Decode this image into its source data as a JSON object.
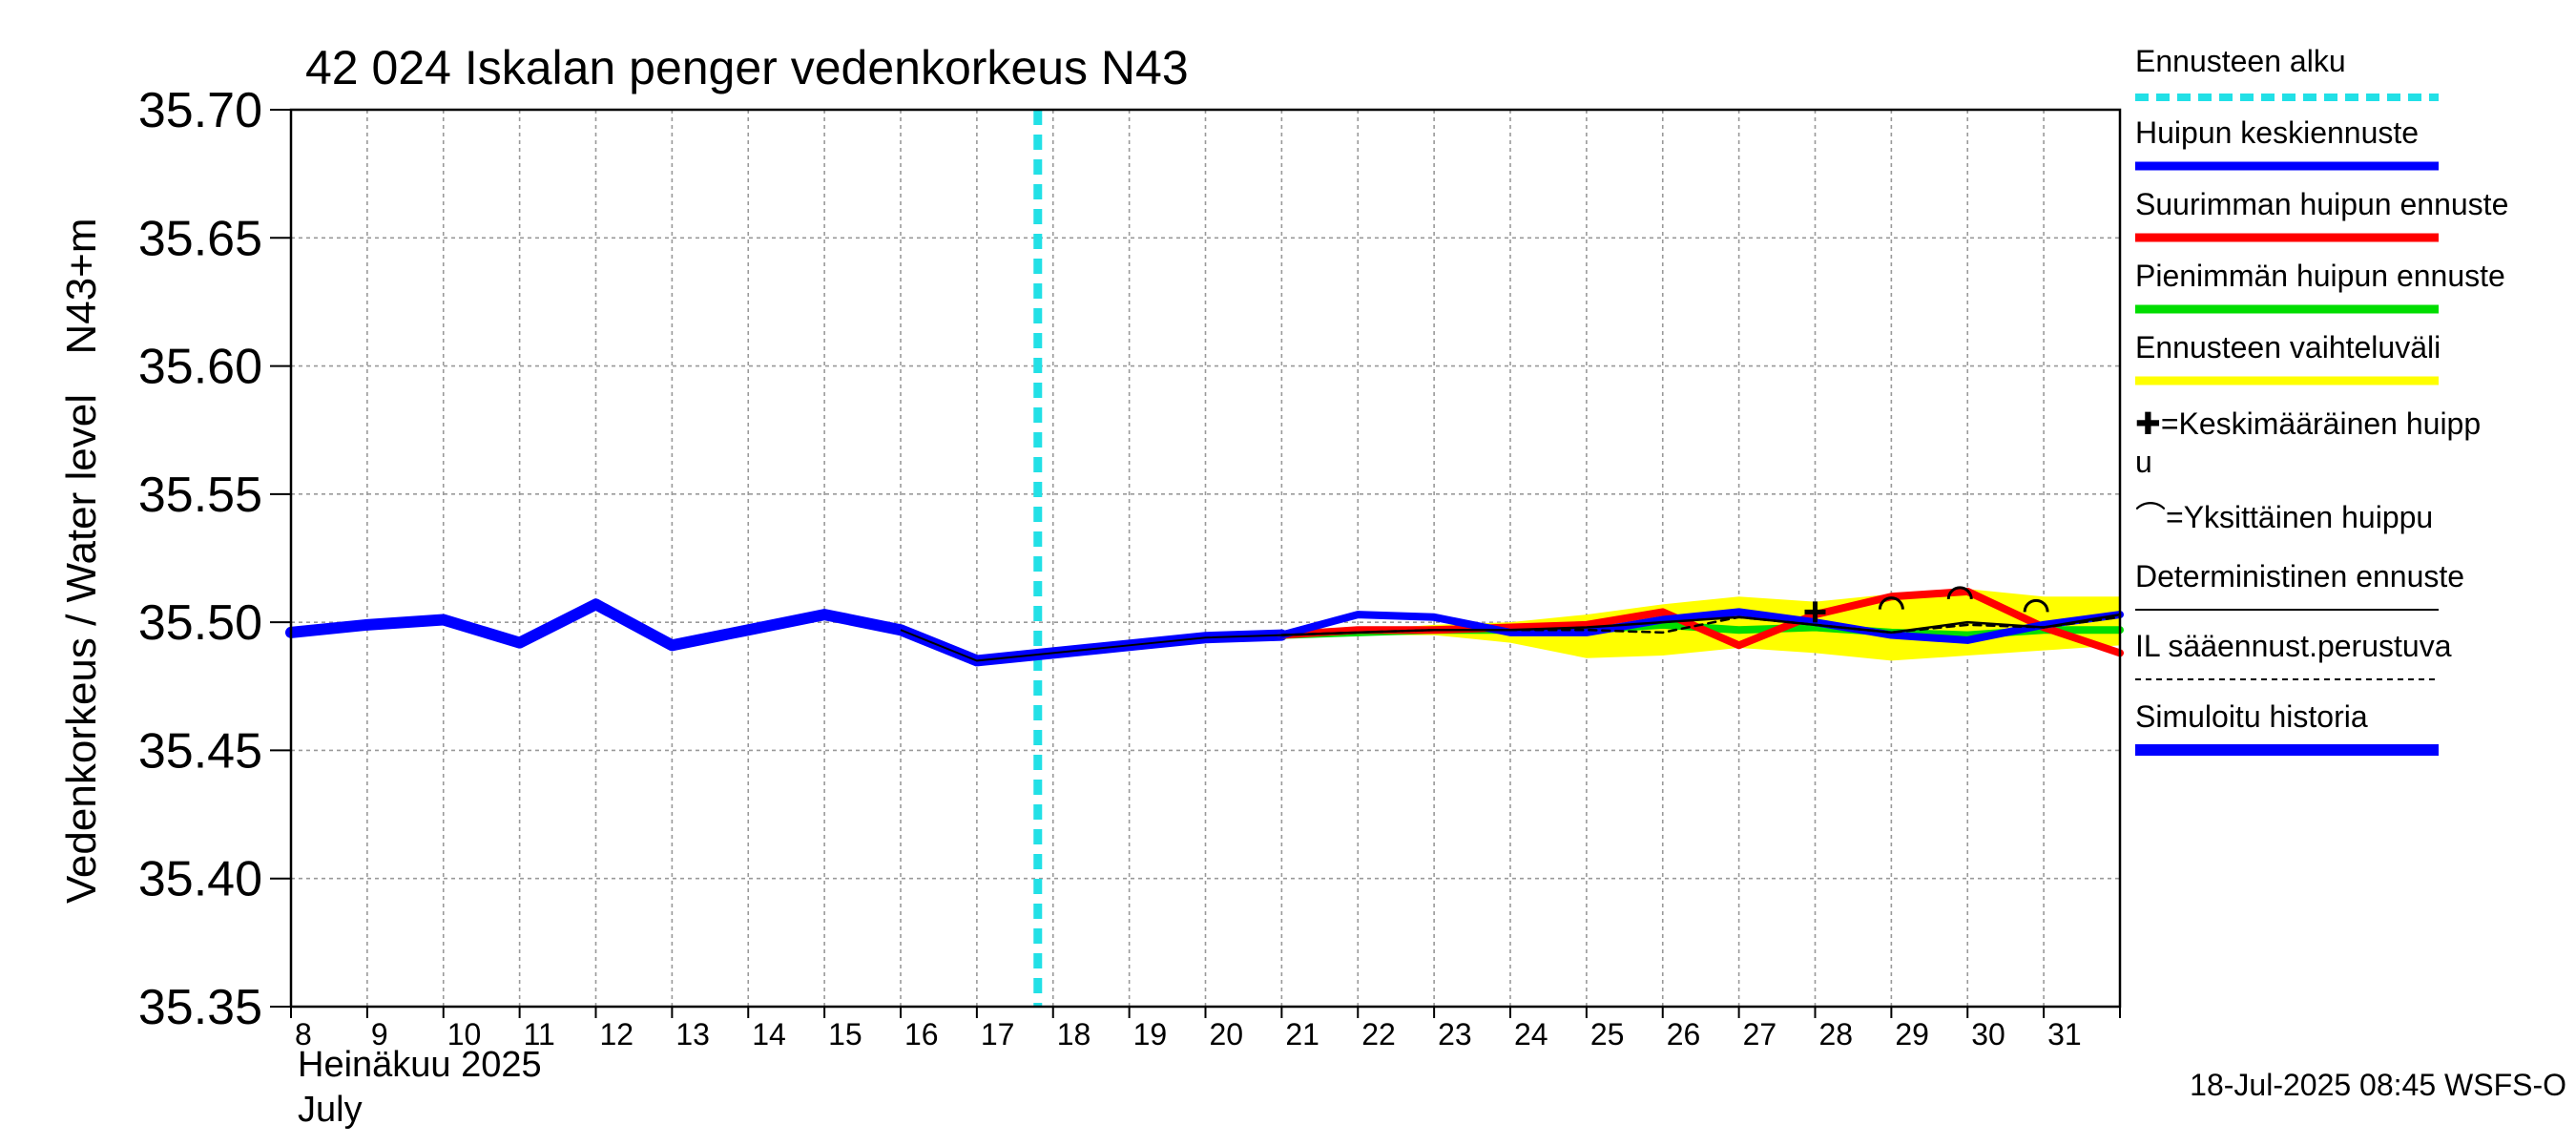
{
  "chart_data": {
    "type": "line",
    "title": "42 024 Iskalan penger vedenkorkeus N43",
    "ylabel": "Vedenkorkeus / Water level",
    "ylabel_unit": "N43+m",
    "x_month_fi": "Heinäkuu  2025",
    "x_month_en": "July",
    "footer": "18-Jul-2025 08:45 WSFS-O",
    "ylim": [
      35.35,
      35.7
    ],
    "xlim": [
      8,
      32
    ],
    "yticks": [
      35.35,
      35.4,
      35.45,
      35.5,
      35.55,
      35.6,
      35.65,
      35.7
    ],
    "ytick_labels": [
      "35.35",
      "35.40",
      "35.45",
      "35.50",
      "35.55",
      "35.60",
      "35.65",
      "35.70"
    ],
    "xtick_labels": [
      "8",
      "9",
      "10",
      "11",
      "12",
      "13",
      "14",
      "15",
      "16",
      "17",
      "18",
      "19",
      "20",
      "21",
      "22",
      "23",
      "24",
      "25",
      "26",
      "27",
      "28",
      "29",
      "30",
      "31"
    ],
    "forecast_start": 17.8,
    "colors": {
      "forecast_start": "#22e0e6",
      "mean_peak": "#0000ff",
      "max_peak": "#ff0000",
      "min_peak": "#00dd00",
      "range": "#ffff00",
      "deterministic": "#000000",
      "history": "#0000ff"
    },
    "series": [
      {
        "name": "Simuloitu historia",
        "x": [
          8,
          9,
          10,
          11,
          12,
          13,
          14,
          15,
          16,
          17,
          18,
          19,
          20,
          21
        ],
        "values": [
          35.496,
          35.499,
          35.501,
          35.492,
          35.507,
          35.491,
          35.497,
          35.503,
          35.497,
          35.485,
          35.488,
          35.491,
          35.494,
          35.495
        ]
      },
      {
        "name": "Ennusteen vaihteluväli upper",
        "x": [
          21,
          22,
          23,
          24,
          25,
          26,
          27,
          28,
          29,
          30,
          31,
          32
        ],
        "values": [
          35.495,
          35.497,
          35.499,
          35.5,
          35.503,
          35.507,
          35.51,
          35.508,
          35.511,
          35.513,
          35.51,
          35.51
        ]
      },
      {
        "name": "Ennusteen vaihteluväli lower",
        "x": [
          21,
          22,
          23,
          24,
          25,
          26,
          27,
          28,
          29,
          30,
          31,
          32
        ],
        "values": [
          35.494,
          35.495,
          35.495,
          35.492,
          35.486,
          35.487,
          35.49,
          35.488,
          35.485,
          35.487,
          35.489,
          35.491
        ]
      },
      {
        "name": "Suurimman huipun ennuste",
        "x": [
          21,
          22,
          23,
          24,
          25,
          26,
          27,
          28,
          29,
          30,
          31,
          32
        ],
        "values": [
          35.495,
          35.497,
          35.497,
          35.498,
          35.499,
          35.504,
          35.491,
          35.503,
          35.51,
          35.512,
          35.498,
          35.488
        ]
      },
      {
        "name": "Pienimmän huipun ennuste",
        "x": [
          21,
          22,
          23,
          24,
          25,
          26,
          27,
          28,
          29,
          30,
          31,
          32
        ],
        "values": [
          35.495,
          35.496,
          35.497,
          35.497,
          35.497,
          35.499,
          35.497,
          35.498,
          35.496,
          35.495,
          35.497,
          35.497
        ]
      },
      {
        "name": "Huipun keskiennuste",
        "x": [
          21,
          22,
          23,
          24,
          25,
          26,
          27,
          28,
          29,
          30,
          31,
          32
        ],
        "values": [
          35.495,
          35.503,
          35.502,
          35.496,
          35.496,
          35.501,
          35.504,
          35.5,
          35.495,
          35.493,
          35.499,
          35.503
        ]
      },
      {
        "name": "Deterministinen ennuste",
        "x": [
          21,
          22,
          23,
          24,
          25,
          26,
          27,
          28,
          29,
          30,
          31,
          32
        ],
        "values": [
          35.495,
          35.496,
          35.497,
          35.497,
          35.498,
          35.5,
          35.502,
          35.499,
          35.496,
          35.5,
          35.498,
          35.503
        ]
      },
      {
        "name": "IL sääennust.perustuva",
        "x": [
          21,
          22,
          23,
          24,
          25,
          26,
          27,
          28,
          29,
          30,
          31,
          32
        ],
        "values": [
          35.495,
          35.496,
          35.497,
          35.497,
          35.497,
          35.496,
          35.502,
          35.499,
          35.496,
          35.499,
          35.498,
          35.502
        ]
      }
    ],
    "mean_peak_markers": [
      {
        "x": 28.0,
        "y": 35.504
      }
    ],
    "single_peak_markers": [
      {
        "x": 29.0,
        "y": 35.508
      },
      {
        "x": 29.9,
        "y": 35.512
      },
      {
        "x": 30.9,
        "y": 35.507
      }
    ],
    "legend": [
      {
        "label": "Ennusteen alku",
        "style": "forecast_start"
      },
      {
        "label": "Huipun keskiennuste",
        "style": "mean_peak"
      },
      {
        "label": "Suurimman huipun ennuste",
        "style": "max_peak"
      },
      {
        "label": "Pienimmän huipun ennuste",
        "style": "min_peak"
      },
      {
        "label": "Ennusteen vaihteluväli",
        "style": "range"
      },
      {
        "label": "✚=Keskimääräinen huipp",
        "label2": "u",
        "style": "mean_marker"
      },
      {
        "label": "⌒=Yksittäinen huippu",
        "style": "single_marker"
      },
      {
        "label": "Deterministinen ennuste",
        "style": "deterministic"
      },
      {
        "label": "IL sääennust.perustuva",
        "style": "il"
      },
      {
        "label": "Simuloitu historia",
        "style": "history"
      }
    ]
  }
}
